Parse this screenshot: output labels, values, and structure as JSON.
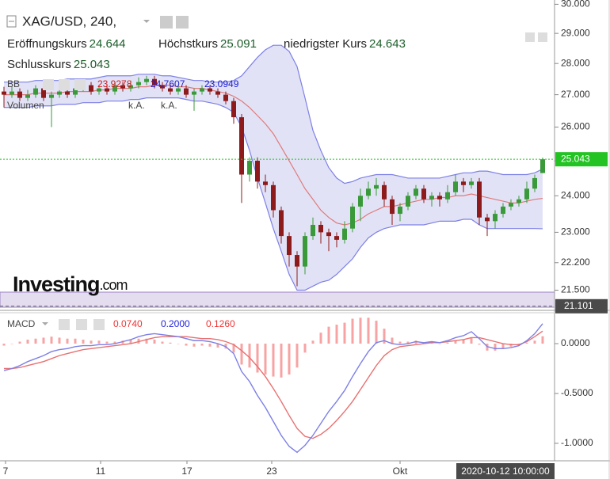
{
  "header": {
    "symbol": "XAG/USD, 240,",
    "open_label": "Eröffnungskurs",
    "high_label": "Höchstkurs",
    "low_label": "niedrigster Kurs",
    "close_label": "Schlusskurs",
    "bb_label": "BB",
    "volume_label": "Volumen",
    "volume_values": [
      "k.A.",
      "k.A."
    ],
    "logo": "Investing",
    "logo_suffix": ".com"
  },
  "chart_data": [
    {
      "type": "candlestick",
      "log_scale": true,
      "ylim": [
        21.0,
        30.15
      ],
      "xlim": [
        -0.5,
        69.5
      ],
      "yticks": [
        {
          "value": 30,
          "label": "30.000"
        },
        {
          "value": 29,
          "label": "29.000"
        },
        {
          "value": 28,
          "label": "28.000"
        },
        {
          "value": 27,
          "label": "27.000"
        },
        {
          "value": 26,
          "label": "26.000"
        },
        {
          "value": 25,
          "label": "25.000"
        },
        {
          "value": 24,
          "label": "24.000"
        },
        {
          "value": 23,
          "label": "23.000"
        },
        {
          "value": 22.2,
          "label": "22.200"
        },
        {
          "value": 21.5,
          "label": "21.500"
        }
      ],
      "xticks": [
        {
          "value": 0.2,
          "label": "7"
        },
        {
          "value": 12.2,
          "label": "11"
        },
        {
          "value": 23.1,
          "label": "17"
        },
        {
          "value": 33.8,
          "label": "23"
        },
        {
          "value": 50,
          "label": "Okt"
        }
      ],
      "up_color": "#3a9a3a",
      "down_color": "#8e1b1b",
      "last_price_color": "#22c322",
      "ohlc": {
        "open": [
          27.1,
          27.0,
          27.1,
          26.9,
          27.0,
          27.2,
          26.9,
          27.0,
          27.1,
          27.0,
          27.2,
          27.3,
          27.1,
          27.2,
          27.1,
          27.3,
          27.2,
          27.3,
          27.4,
          27.5,
          27.3,
          27.2,
          27.1,
          27.2,
          27.0,
          27.1,
          27.2,
          27.1,
          27.0,
          26.8,
          26.3,
          24.6,
          25.0,
          24.4,
          24.3,
          23.6,
          22.9,
          22.4,
          22.1,
          22.9,
          23.2,
          23.0,
          22.9,
          22.8,
          23.1,
          23.7,
          24.0,
          24.2,
          24.3,
          23.9,
          23.5,
          23.7,
          24.0,
          24.2,
          23.9,
          24.0,
          23.9,
          24.1,
          24.4,
          24.3,
          24.4,
          23.4,
          23.3,
          23.5,
          23.7,
          23.8,
          23.9,
          24.2,
          24.644
        ],
        "high": [
          27.25,
          27.25,
          27.2,
          27.15,
          27.3,
          27.3,
          27.1,
          27.2,
          27.2,
          27.3,
          27.45,
          27.4,
          27.3,
          27.3,
          27.4,
          27.4,
          27.45,
          27.55,
          27.6,
          27.6,
          27.4,
          27.3,
          27.3,
          27.3,
          27.2,
          27.3,
          27.3,
          27.2,
          27.1,
          26.9,
          26.4,
          25.1,
          25.1,
          24.6,
          24.4,
          23.7,
          23.0,
          22.5,
          23.0,
          23.4,
          23.3,
          23.1,
          23.0,
          23.3,
          23.8,
          24.2,
          24.4,
          24.5,
          24.4,
          24.0,
          23.8,
          24.1,
          24.3,
          24.3,
          24.1,
          24.1,
          24.3,
          24.6,
          24.5,
          24.5,
          24.5,
          23.5,
          23.6,
          23.8,
          23.9,
          24.0,
          24.4,
          24.6,
          25.091
        ],
        "low": [
          26.6,
          26.9,
          26.8,
          26.8,
          26.9,
          26.8,
          26.0,
          26.9,
          26.9,
          26.9,
          27.1,
          27.0,
          27.0,
          27.0,
          27.0,
          27.1,
          27.1,
          27.2,
          27.3,
          27.2,
          27.1,
          27.0,
          27.0,
          26.9,
          26.5,
          27.0,
          27.0,
          26.9,
          26.7,
          26.1,
          23.8,
          24.4,
          24.2,
          24.1,
          23.4,
          22.7,
          22.1,
          21.6,
          21.9,
          22.8,
          22.7,
          22.5,
          22.6,
          22.7,
          23.0,
          23.3,
          23.9,
          24.0,
          23.7,
          23.2,
          23.3,
          23.6,
          23.9,
          23.8,
          23.7,
          23.7,
          23.8,
          24.0,
          24.1,
          24.2,
          23.2,
          22.9,
          23.1,
          23.4,
          23.6,
          23.7,
          23.8,
          24.1,
          24.643
        ],
        "close": [
          27.0,
          27.1,
          26.9,
          27.0,
          27.2,
          26.9,
          27.0,
          27.1,
          27.0,
          27.2,
          27.3,
          27.1,
          27.2,
          27.1,
          27.3,
          27.2,
          27.3,
          27.4,
          27.5,
          27.3,
          27.2,
          27.1,
          27.2,
          27.0,
          27.1,
          27.2,
          27.1,
          27.0,
          26.8,
          26.3,
          24.6,
          25.0,
          24.4,
          24.3,
          23.6,
          22.9,
          22.4,
          22.1,
          22.9,
          23.2,
          23.0,
          22.9,
          22.8,
          23.1,
          23.7,
          24.0,
          24.2,
          24.3,
          23.9,
          23.5,
          23.7,
          24.0,
          24.2,
          23.9,
          24.0,
          23.9,
          24.1,
          24.4,
          24.3,
          24.4,
          23.4,
          23.3,
          23.5,
          23.7,
          23.8,
          23.9,
          24.2,
          24.5,
          25.043
        ]
      },
      "bollinger": {
        "band_color": "#7d80e6",
        "fill_color": "#d6d6f2",
        "middle_color": "#e07a7a",
        "upper": [
          27.4,
          27.4,
          27.4,
          27.4,
          27.45,
          27.45,
          27.45,
          27.45,
          27.5,
          27.5,
          27.5,
          27.5,
          27.55,
          27.6,
          27.6,
          27.6,
          27.6,
          27.65,
          27.65,
          27.65,
          27.6,
          27.6,
          27.55,
          27.5,
          27.45,
          27.45,
          27.4,
          27.4,
          27.4,
          27.45,
          27.6,
          27.9,
          28.2,
          28.45,
          28.6,
          28.6,
          28.4,
          27.9,
          26.9,
          25.9,
          25.3,
          24.8,
          24.5,
          24.35,
          24.4,
          24.5,
          24.55,
          24.6,
          24.6,
          24.6,
          24.55,
          24.5,
          24.5,
          24.5,
          24.5,
          24.5,
          24.55,
          24.6,
          24.65,
          24.65,
          24.7,
          24.7,
          24.65,
          24.6,
          24.6,
          24.6,
          24.6,
          24.65,
          24.7607
        ],
        "middle": [
          27.0,
          27.0,
          27.0,
          27.0,
          27.05,
          27.05,
          27.05,
          27.05,
          27.1,
          27.1,
          27.1,
          27.1,
          27.15,
          27.15,
          27.2,
          27.2,
          27.2,
          27.25,
          27.25,
          27.3,
          27.3,
          27.3,
          27.25,
          27.25,
          27.2,
          27.2,
          27.15,
          27.1,
          27.05,
          26.95,
          26.8,
          26.6,
          26.35,
          26.1,
          25.8,
          25.4,
          25.0,
          24.6,
          24.2,
          23.9,
          23.6,
          23.4,
          23.25,
          23.2,
          23.25,
          23.35,
          23.5,
          23.6,
          23.7,
          23.7,
          23.75,
          23.8,
          23.85,
          23.9,
          23.9,
          23.95,
          23.95,
          24.0,
          24.0,
          24.05,
          24.0,
          23.95,
          23.9,
          23.85,
          23.8,
          23.8,
          23.85,
          23.9,
          23.9278
        ],
        "lower": [
          26.6,
          26.6,
          26.6,
          26.6,
          26.65,
          26.65,
          26.65,
          26.7,
          26.7,
          26.7,
          26.75,
          26.75,
          26.75,
          26.8,
          26.8,
          26.8,
          26.85,
          26.85,
          26.9,
          26.9,
          26.9,
          26.9,
          26.9,
          26.85,
          26.8,
          26.8,
          26.75,
          26.7,
          26.6,
          26.45,
          26.0,
          25.3,
          24.5,
          23.8,
          23.1,
          22.5,
          21.9,
          21.5,
          21.5,
          21.6,
          21.7,
          21.75,
          21.9,
          22.1,
          22.3,
          22.6,
          22.85,
          23.0,
          23.1,
          23.15,
          23.2,
          23.2,
          23.2,
          23.2,
          23.25,
          23.3,
          23.3,
          23.3,
          23.35,
          23.35,
          23.2,
          23.1,
          23.1,
          23.1,
          23.1,
          23.1,
          23.1,
          23.1,
          23.0949
        ]
      },
      "crosshair": {
        "price": 21.101,
        "time": "2020-10-12 10:00:00"
      }
    },
    {
      "type": "macd",
      "title": "MACD",
      "ylim": [
        -1.175,
        0.286
      ],
      "yticks": [
        {
          "value": 0,
          "label": "0.0000"
        },
        {
          "value": -0.5,
          "label": "-0.5000"
        },
        {
          "value": -1,
          "label": "-1.0000"
        }
      ],
      "histogram": {
        "color": "#ee3333",
        "legend_label": "0.0740",
        "values": [
          -0.02,
          0.0,
          0.02,
          0.04,
          0.05,
          0.06,
          0.07,
          0.06,
          0.05,
          0.05,
          0.04,
          0.03,
          0.03,
          0.02,
          0.02,
          0.03,
          0.04,
          0.05,
          0.05,
          0.04,
          0.02,
          0.01,
          0.0,
          -0.02,
          -0.03,
          -0.02,
          -0.03,
          -0.04,
          -0.05,
          -0.09,
          -0.21,
          -0.24,
          -0.29,
          -0.31,
          -0.33,
          -0.34,
          -0.31,
          -0.24,
          -0.09,
          0.03,
          0.11,
          0.17,
          0.19,
          0.21,
          0.25,
          0.26,
          0.26,
          0.23,
          0.15,
          0.06,
          0.02,
          0.02,
          0.03,
          0.01,
          0.01,
          0.0,
          0.01,
          0.03,
          0.04,
          0.06,
          -0.01,
          -0.07,
          -0.07,
          -0.05,
          -0.03,
          -0.01,
          0.01,
          0.03,
          0.074
        ]
      },
      "macd": {
        "color": "#2222dd",
        "line_color": "#7d80e6",
        "legend_label": "0.2000",
        "values": [
          -0.27,
          -0.25,
          -0.22,
          -0.18,
          -0.15,
          -0.12,
          -0.08,
          -0.06,
          -0.05,
          -0.03,
          -0.02,
          -0.02,
          -0.01,
          -0.01,
          0.0,
          0.02,
          0.04,
          0.07,
          0.09,
          0.1,
          0.09,
          0.08,
          0.07,
          0.05,
          0.03,
          0.03,
          0.02,
          0.0,
          -0.03,
          -0.1,
          -0.28,
          -0.38,
          -0.52,
          -0.64,
          -0.78,
          -0.92,
          -1.03,
          -1.09,
          -1.02,
          -0.92,
          -0.8,
          -0.68,
          -0.58,
          -0.47,
          -0.33,
          -0.2,
          -0.08,
          0.01,
          0.03,
          0.0,
          -0.01,
          0.0,
          0.02,
          0.01,
          0.02,
          0.01,
          0.03,
          0.06,
          0.08,
          0.12,
          0.05,
          -0.03,
          -0.05,
          -0.05,
          -0.04,
          -0.02,
          0.03,
          0.1,
          0.2
        ]
      },
      "signal": {
        "color": "#ee3333",
        "line_color": "#e87070",
        "legend_label": "0.1260",
        "values": [
          -0.25,
          -0.25,
          -0.24,
          -0.22,
          -0.2,
          -0.18,
          -0.15,
          -0.12,
          -0.1,
          -0.08,
          -0.06,
          -0.05,
          -0.04,
          -0.03,
          -0.02,
          -0.01,
          0.0,
          0.02,
          0.04,
          0.06,
          0.07,
          0.07,
          0.07,
          0.07,
          0.06,
          0.05,
          0.05,
          0.04,
          0.02,
          -0.01,
          -0.07,
          -0.14,
          -0.23,
          -0.33,
          -0.45,
          -0.58,
          -0.72,
          -0.85,
          -0.93,
          -0.95,
          -0.91,
          -0.85,
          -0.77,
          -0.68,
          -0.58,
          -0.46,
          -0.34,
          -0.22,
          -0.12,
          -0.06,
          -0.03,
          -0.02,
          -0.01,
          0.0,
          0.01,
          0.01,
          0.02,
          0.03,
          0.04,
          0.06,
          0.06,
          0.04,
          0.02,
          0.0,
          -0.01,
          -0.01,
          0.02,
          0.07,
          0.126
        ]
      }
    }
  ]
}
